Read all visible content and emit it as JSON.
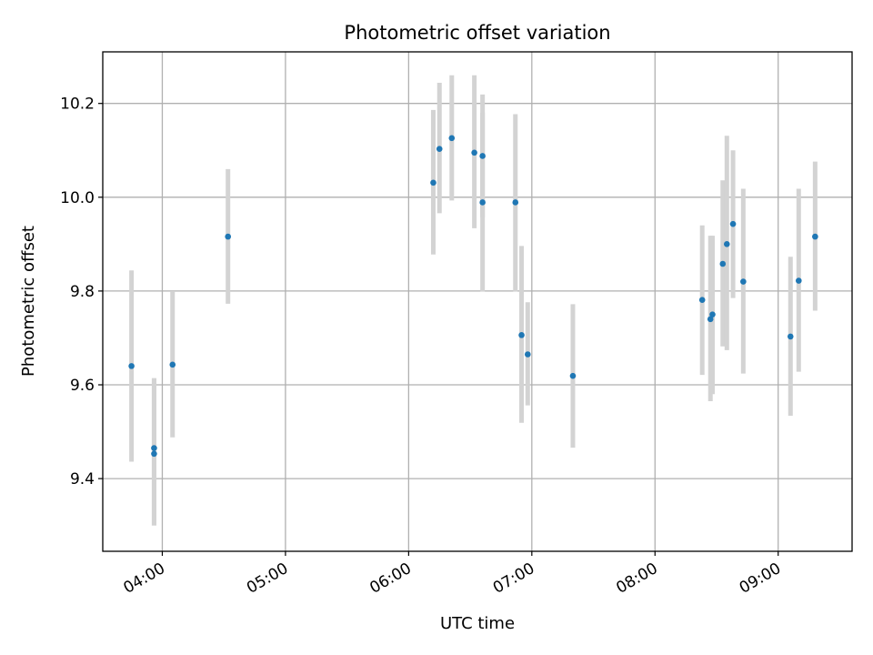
{
  "chart_data": {
    "type": "scatter",
    "title": "Photometric offset variation",
    "xlabel": "UTC time",
    "ylabel": "Photometric offset",
    "grid": true,
    "xlim": [
      "03:31",
      "09:36"
    ],
    "ylim": [
      9.245,
      10.31
    ],
    "x_ticks": [
      {
        "t": "04:00",
        "label": "04:00"
      },
      {
        "t": "05:00",
        "label": "05:00"
      },
      {
        "t": "06:00",
        "label": "06:00"
      },
      {
        "t": "07:00",
        "label": "07:00"
      },
      {
        "t": "08:00",
        "label": "08:00"
      },
      {
        "t": "09:00",
        "label": "09:00"
      }
    ],
    "y_ticks": [
      {
        "v": 9.4,
        "label": "9.4"
      },
      {
        "v": 9.6,
        "label": "9.6"
      },
      {
        "v": 9.8,
        "label": "9.8"
      },
      {
        "v": 10.0,
        "label": "10.0"
      },
      {
        "v": 10.2,
        "label": "10.2"
      }
    ],
    "colors": {
      "points": "#1f77b4",
      "error_bars": "#d3d3d3",
      "grid": "#b0b0b0"
    },
    "points": [
      {
        "t": "03:45",
        "y": 9.64,
        "lo": 9.436,
        "hi": 9.844
      },
      {
        "t": "03:56",
        "y": 9.465,
        "lo": 9.3,
        "hi": 9.614
      },
      {
        "t": "03:56",
        "y": 9.453,
        "lo": 9.3,
        "hi": 9.614
      },
      {
        "t": "04:05",
        "y": 9.643,
        "lo": 9.488,
        "hi": 9.798
      },
      {
        "t": "04:32",
        "y": 9.916,
        "lo": 9.773,
        "hi": 10.06
      },
      {
        "t": "06:12",
        "y": 10.031,
        "lo": 9.878,
        "hi": 10.186
      },
      {
        "t": "06:15",
        "y": 10.103,
        "lo": 9.966,
        "hi": 10.244
      },
      {
        "t": "06:21",
        "y": 10.126,
        "lo": 9.993,
        "hi": 10.26
      },
      {
        "t": "06:32",
        "y": 10.095,
        "lo": 9.934,
        "hi": 10.26
      },
      {
        "t": "06:36",
        "y": 10.088,
        "lo": 9.957,
        "hi": 10.219
      },
      {
        "t": "06:36",
        "y": 9.989,
        "lo": 9.799,
        "hi": 10.18
      },
      {
        "t": "06:52",
        "y": 9.989,
        "lo": 9.799,
        "hi": 10.177
      },
      {
        "t": "06:55",
        "y": 9.706,
        "lo": 9.519,
        "hi": 9.896
      },
      {
        "t": "06:58",
        "y": 9.665,
        "lo": 9.556,
        "hi": 9.776
      },
      {
        "t": "07:20",
        "y": 9.619,
        "lo": 9.466,
        "hi": 9.772
      },
      {
        "t": "08:23",
        "y": 9.781,
        "lo": 9.621,
        "hi": 9.94
      },
      {
        "t": "08:27",
        "y": 9.74,
        "lo": 9.565,
        "hi": 9.918
      },
      {
        "t": "08:28",
        "y": 9.75,
        "lo": 9.58,
        "hi": 9.918
      },
      {
        "t": "08:33",
        "y": 9.858,
        "lo": 9.682,
        "hi": 10.036
      },
      {
        "t": "08:35",
        "y": 9.9,
        "lo": 9.674,
        "hi": 10.131
      },
      {
        "t": "08:38",
        "y": 9.943,
        "lo": 9.785,
        "hi": 10.1
      },
      {
        "t": "08:43",
        "y": 9.82,
        "lo": 9.624,
        "hi": 10.018
      },
      {
        "t": "09:06",
        "y": 9.703,
        "lo": 9.534,
        "hi": 9.873
      },
      {
        "t": "09:10",
        "y": 9.822,
        "lo": 9.628,
        "hi": 10.018
      },
      {
        "t": "09:18",
        "y": 9.916,
        "lo": 9.758,
        "hi": 10.076
      }
    ]
  }
}
